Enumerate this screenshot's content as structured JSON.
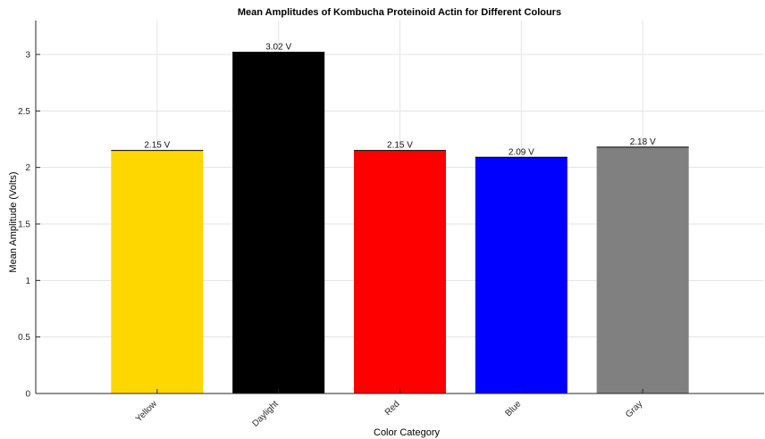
{
  "chart_data": {
    "type": "bar",
    "title": "Mean Amplitudes of Kombucha Proteinoid Actin for Different Colours",
    "xlabel": "Color Category",
    "ylabel": "Mean Amplitude (Volts)",
    "categories": [
      "Yellow",
      "Daylight",
      "Red",
      "Blue",
      "Gray"
    ],
    "values": [
      2.15,
      3.02,
      2.15,
      2.09,
      2.18
    ],
    "data_labels": [
      "2.15 V",
      "3.02 V",
      "2.15 V",
      "2.09 V",
      "2.18 V"
    ],
    "colors": [
      "#FFD700",
      "#000000",
      "#FF0000",
      "#0000FF",
      "#808080"
    ],
    "ylim": [
      0,
      3.3
    ],
    "yticks": [
      "0",
      "0.5",
      "1",
      "1.5",
      "2",
      "2.5",
      "3"
    ],
    "grid": true,
    "legend": "none"
  }
}
